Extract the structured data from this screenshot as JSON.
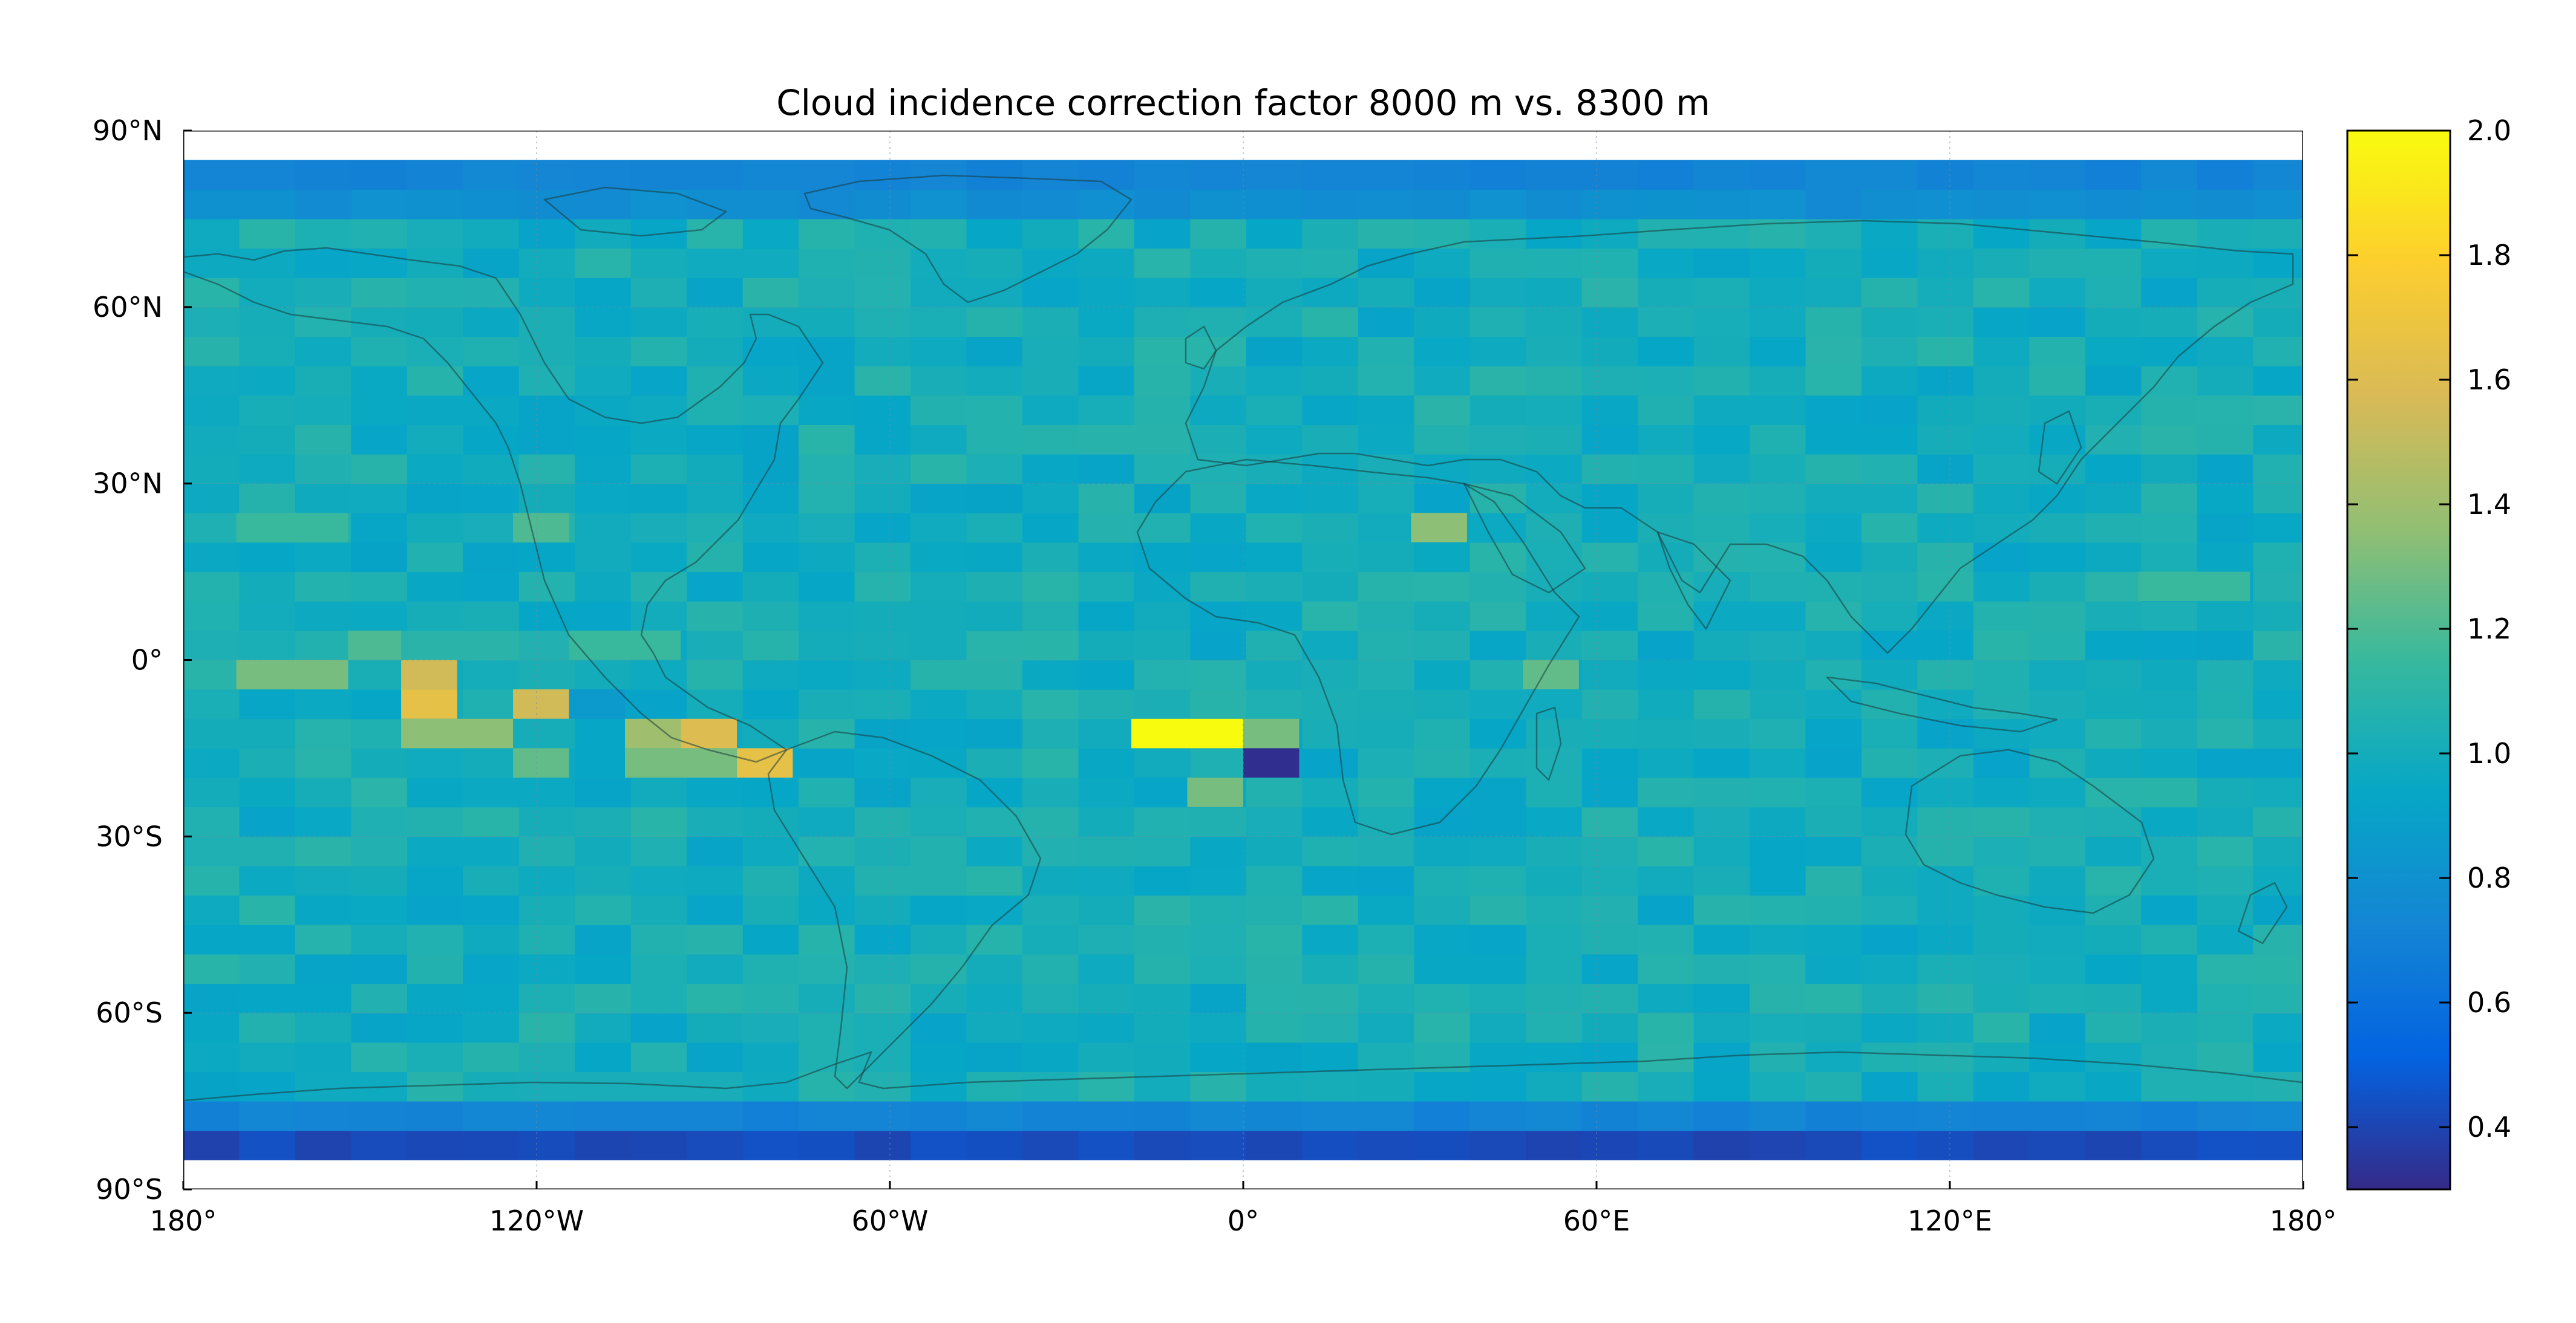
{
  "figure": {
    "title": "Cloud incidence correction factor 8000 m vs. 8300 m"
  },
  "chart_data": {
    "type": "heatmap",
    "title": "Cloud incidence correction factor 8000 m vs. 8300 m",
    "xlabel": "",
    "ylabel": "",
    "projection": "plate-carree",
    "xlim": [
      -180,
      180
    ],
    "ylim": [
      -90,
      90
    ],
    "x_ticks": [
      -180,
      -120,
      -60,
      0,
      60,
      120,
      180
    ],
    "x_tick_labels": [
      "180°",
      "120°W",
      "60°W",
      "0°",
      "60°E",
      "120°E",
      "180°"
    ],
    "y_ticks": [
      90,
      60,
      30,
      0,
      -30,
      -60,
      -90
    ],
    "y_tick_labels": [
      "90°N",
      "60°N",
      "30°N",
      "0°",
      "30°S",
      "60°S",
      "90°S"
    ],
    "grid": true,
    "coastlines": true,
    "cell_width_deg": 9.5,
    "cell_height_deg": 5,
    "data_lat_range": [
      -85,
      85
    ],
    "background_value": 1.0,
    "rows": [
      {
        "lat": [
          80,
          85
        ],
        "value": 0.72
      },
      {
        "lat": [
          75,
          80
        ],
        "value": 0.78
      },
      {
        "lat": [
          -80,
          -75
        ],
        "value": 0.72
      },
      {
        "lat": [
          -85,
          -80
        ],
        "value": 0.42
      }
    ],
    "anomalies": [
      {
        "lon": [
          -171,
          -152
        ],
        "lat": [
          -5,
          0
        ],
        "value": 1.3
      },
      {
        "lon": [
          -143,
          -133.5
        ],
        "lat": [
          -5,
          0
        ],
        "value": 1.55
      },
      {
        "lon": [
          -143,
          -133.5
        ],
        "lat": [
          -10,
          -5
        ],
        "value": 1.65
      },
      {
        "lon": [
          -143,
          -124
        ],
        "lat": [
          -15,
          -10
        ],
        "value": 1.35
      },
      {
        "lon": [
          -124,
          -114.5
        ],
        "lat": [
          -10,
          -5
        ],
        "value": 1.55
      },
      {
        "lon": [
          -114.5,
          -105
        ],
        "lat": [
          -10,
          -5
        ],
        "value": 0.85
      },
      {
        "lon": [
          -105,
          -95.5
        ],
        "lat": [
          -15,
          -10
        ],
        "value": 1.4
      },
      {
        "lon": [
          -95.5,
          -86
        ],
        "lat": [
          -15,
          -10
        ],
        "value": 1.6
      },
      {
        "lon": [
          -86,
          -76.5
        ],
        "lat": [
          -20,
          -15
        ],
        "value": 1.65
      },
      {
        "lon": [
          -124,
          -114.5
        ],
        "lat": [
          -20,
          -15
        ],
        "value": 1.25
      },
      {
        "lon": [
          -105,
          -86
        ],
        "lat": [
          -20,
          -15
        ],
        "value": 1.3
      },
      {
        "lon": [
          -19,
          0
        ],
        "lat": [
          -15,
          -10
        ],
        "value": 2.0
      },
      {
        "lon": [
          0,
          9.5
        ],
        "lat": [
          -15,
          -10
        ],
        "value": 1.3
      },
      {
        "lon": [
          0,
          9.5
        ],
        "lat": [
          -20,
          -15
        ],
        "value": 0.32
      },
      {
        "lon": [
          -9.5,
          0
        ],
        "lat": [
          -25,
          -20
        ],
        "value": 1.3
      },
      {
        "lon": [
          28.5,
          38
        ],
        "lat": [
          20,
          25
        ],
        "value": 1.35
      },
      {
        "lon": [
          47.5,
          57
        ],
        "lat": [
          -5,
          0
        ],
        "value": 1.25
      },
      {
        "lon": [
          -171,
          -152
        ],
        "lat": [
          20,
          25
        ],
        "value": 1.15
      },
      {
        "lon": [
          -124,
          -114.5
        ],
        "lat": [
          20,
          25
        ],
        "value": 1.2
      },
      {
        "lon": [
          -114.5,
          -95.5
        ],
        "lat": [
          0,
          5
        ],
        "value": 1.15
      },
      {
        "lon": [
          152,
          171
        ],
        "lat": [
          10,
          15
        ],
        "value": 1.15
      },
      {
        "lon": [
          -152,
          -143
        ],
        "lat": [
          0,
          5
        ],
        "value": 1.2
      }
    ],
    "colorbar": {
      "min": 0.3,
      "max": 2.0,
      "ticks": [
        0.4,
        0.6,
        0.8,
        1.0,
        1.2,
        1.4,
        1.6,
        1.8,
        2.0
      ],
      "tick_labels": [
        "0.4",
        "0.6",
        "0.8",
        "1.0",
        "1.2",
        "1.4",
        "1.6",
        "1.8",
        "2.0"
      ],
      "colormap": "parula",
      "colors": [
        "#352a87",
        "#0363e1",
        "#1485d4",
        "#06a7c6",
        "#38b99e",
        "#92bf73",
        "#d9ba56",
        "#fcce2e",
        "#f9fb0e"
      ]
    }
  }
}
